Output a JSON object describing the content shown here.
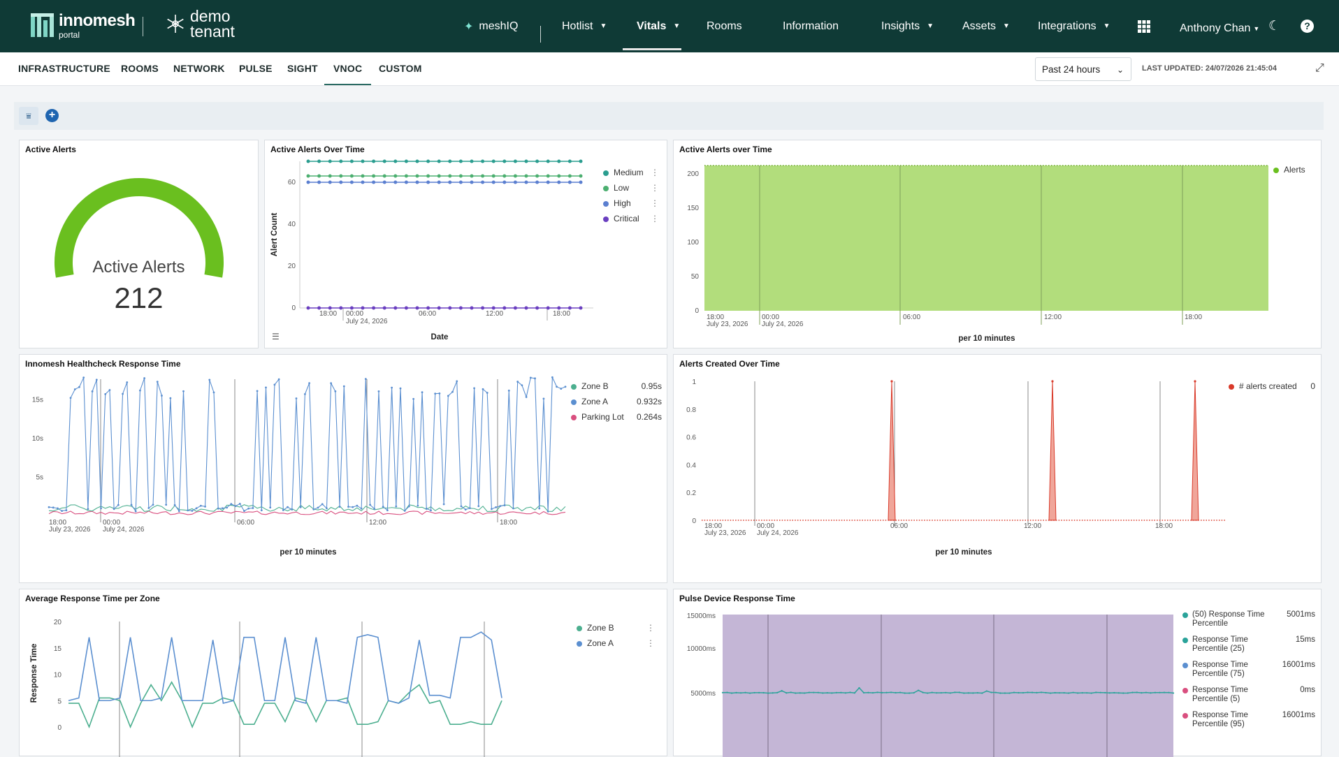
{
  "brand": {
    "name": "innomesh",
    "sub": "portal",
    "tenant_line1": "demo",
    "tenant_line2": "tenant"
  },
  "nav": {
    "items": [
      {
        "label": "meshIQ",
        "icon": "sparkle-icon"
      },
      {
        "label": "Hotlist",
        "caret": true
      },
      {
        "label": "Vitals",
        "caret": true,
        "active": true
      },
      {
        "label": "Rooms"
      },
      {
        "label": "Information"
      },
      {
        "label": "Insights",
        "caret": true
      },
      {
        "label": "Assets",
        "caret": true
      },
      {
        "label": "Integrations",
        "caret": true
      }
    ],
    "user": "Anthony Chan",
    "icons": [
      "apps-grid-icon",
      "moon-icon",
      "help-icon"
    ]
  },
  "subnav": {
    "tabs": [
      "INFRASTRUCTURE",
      "ROOMS",
      "NETWORK",
      "PULSE",
      "SIGHT",
      "VNOC",
      "CUSTOM"
    ],
    "active": "VNOC",
    "time_range": "Past 24 hours",
    "last_updated": "LAST UPDATED: 24/07/2026 21:45:04"
  },
  "panels": {
    "gauge": {
      "title": "Active Alerts",
      "label": "Active Alerts",
      "value": "212",
      "fill_fraction": 1.0,
      "color": "#6abf1f"
    },
    "alerts_over_time": {
      "title": "Active Alerts Over Time"
    },
    "alerts_over_time2": {
      "title": "Active Alerts over Time"
    },
    "healthcheck": {
      "title": "Innomesh Healthcheck Response Time"
    },
    "alerts_created": {
      "title": "Alerts Created Over Time"
    },
    "avg_response": {
      "title": "Average Response Time per Zone"
    },
    "pulse": {
      "title": "Pulse Device Response Time"
    }
  },
  "chart_data": [
    {
      "id": "alerts_over_time",
      "type": "line",
      "title": "Active Alerts Over Time",
      "xlabel": "Date",
      "ylabel": "Alert Count",
      "ylim": [
        0,
        70
      ],
      "yticks": [
        0,
        20,
        40,
        60
      ],
      "xticks": [
        "18:00",
        "00:00",
        "July 24, 2026",
        "06:00",
        "12:00",
        "18:00"
      ],
      "series": [
        {
          "name": "Medium",
          "color": "#2a9d8f",
          "value": 70
        },
        {
          "name": "Low",
          "color": "#4caf70",
          "value": 63
        },
        {
          "name": "High",
          "color": "#5b7fd0",
          "value": 60
        },
        {
          "name": "Critical",
          "color": "#6a3fc0",
          "value": 0
        }
      ]
    },
    {
      "id": "alerts_over_time2",
      "type": "area",
      "title": "Active Alerts over Time",
      "xlabel": "per 10 minutes",
      "ylim": [
        0,
        212
      ],
      "yticks": [
        0,
        50,
        100,
        150,
        200
      ],
      "xticks": [
        "18:00",
        "July 23, 2026",
        "00:00",
        "July 24, 2026",
        "06:00",
        "12:00",
        "18:00"
      ],
      "series": [
        {
          "name": "Alerts",
          "color": "#6abf1f",
          "value": 212
        }
      ]
    },
    {
      "id": "healthcheck",
      "type": "line",
      "title": "Innomesh Healthcheck Response Time",
      "xlabel": "per 10 minutes",
      "ylim": [
        0,
        18
      ],
      "yticks": [
        "5s",
        "10s",
        "15s"
      ],
      "xticks": [
        "18:00",
        "July 23, 2026",
        "00:00",
        "July 24, 2026",
        "06:00",
        "12:00",
        "18:00"
      ],
      "series": [
        {
          "name": "Zone B",
          "color": "#4caf8f",
          "last": "0.95s"
        },
        {
          "name": "Zone A",
          "color": "#5b8fd0",
          "last": "0.932s"
        },
        {
          "name": "Parking Lot",
          "color": "#d94f7f",
          "last": "0.264s"
        }
      ]
    },
    {
      "id": "alerts_created",
      "type": "area",
      "title": "Alerts Created Over Time",
      "xlabel": "per 10 minutes",
      "ylim": [
        0,
        1
      ],
      "yticks": [
        "0",
        "0.2",
        "0.4",
        "0.6",
        "0.8",
        "1"
      ],
      "xticks": [
        "18:00",
        "July 23, 2026",
        "00:00",
        "July 24, 2026",
        "06:00",
        "12:00",
        "18:00"
      ],
      "series": [
        {
          "name": "# alerts created",
          "color": "#d93a2a",
          "last": "0"
        }
      ]
    },
    {
      "id": "avg_response",
      "type": "line",
      "title": "Average Response Time per Zone",
      "ylabel": "Response Time",
      "ylim": [
        0,
        20
      ],
      "yticks": [
        0,
        5,
        10,
        15,
        20
      ],
      "series": [
        {
          "name": "Zone B",
          "color": "#4caf8f"
        },
        {
          "name": "Zone A",
          "color": "#5b8fd0"
        }
      ]
    },
    {
      "id": "pulse",
      "type": "area",
      "title": "Pulse Device Response Time",
      "ylim": [
        0,
        16001
      ],
      "yticks": [
        "5000ms",
        "10000ms",
        "15000ms"
      ],
      "series": [
        {
          "name": "(50) Response Time Percentile",
          "color": "#2aa39a",
          "last": "5001ms"
        },
        {
          "name": "Response Time Percentile (25)",
          "color": "#2aa39a",
          "last": "15ms"
        },
        {
          "name": "Response Time Percentile (75)",
          "color": "#5b8fd0",
          "last": "16001ms"
        },
        {
          "name": "Response Time Percentile (5)",
          "color": "#d94f7f",
          "last": "0ms"
        },
        {
          "name": "Response Time Percentile (95)",
          "color": "#d94f7f",
          "last": "16001ms"
        }
      ]
    }
  ]
}
